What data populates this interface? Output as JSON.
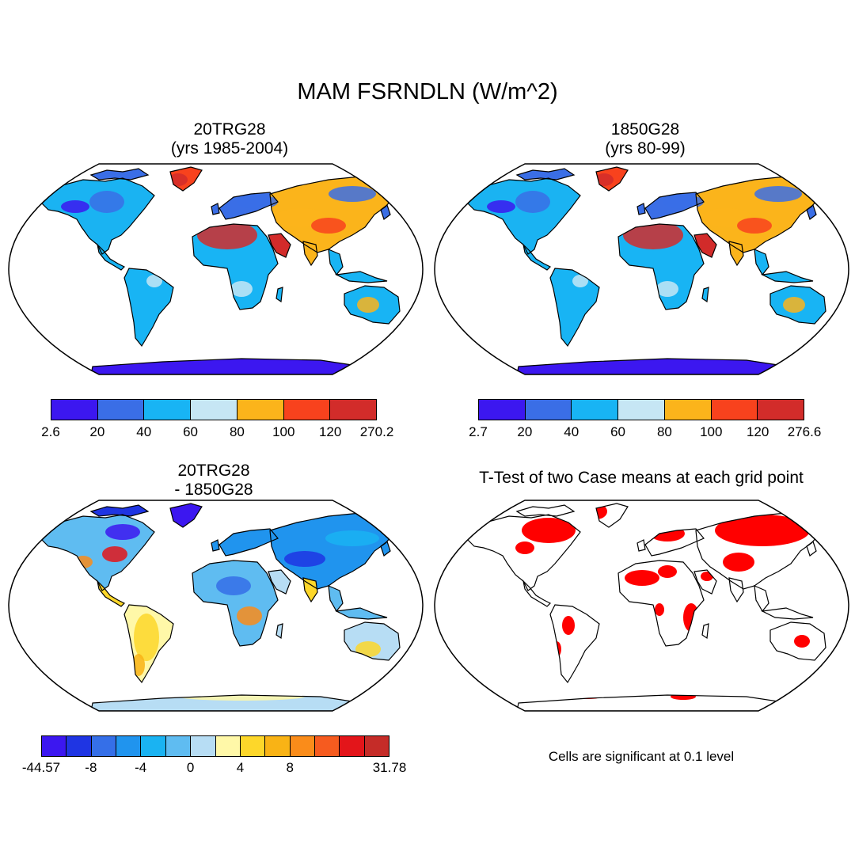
{
  "title": "MAM FSRNDLN (W/m^2)",
  "panels": [
    {
      "id": "p1",
      "title_line1": "20TRG28",
      "title_line2": "(yrs 1985-2004)",
      "colorbar": {
        "colors": [
          "#3c17f0",
          "#3a6ee6",
          "#18b4f4",
          "#c6e6f4",
          "#fbb41b",
          "#f8421d",
          "#d22c2a"
        ],
        "labels": [
          "2.6",
          "20",
          "40",
          "60",
          "80",
          "100",
          "120",
          "270.2"
        ]
      }
    },
    {
      "id": "p2",
      "title_line1": "1850G28",
      "title_line2": "(yrs 80-99)",
      "colorbar": {
        "colors": [
          "#3c17f0",
          "#3a6ee6",
          "#18b4f4",
          "#c6e6f4",
          "#fbb41b",
          "#f8421d",
          "#d22c2a"
        ],
        "labels": [
          "2.7",
          "20",
          "40",
          "60",
          "80",
          "100",
          "120",
          "276.6"
        ]
      }
    },
    {
      "id": "p3",
      "title_line1": "20TRG28",
      "title_line2": "- 1850G28",
      "colorbar": {
        "colors": [
          "#3c17f0",
          "#1f35e3",
          "#356fe8",
          "#2094ee",
          "#1ab3f2",
          "#5fbcf1",
          "#b7ddf4",
          "#fff8a8",
          "#fdd72a",
          "#f9b315",
          "#fa8c1a",
          "#f65b1f",
          "#e3151a",
          "#c52c28"
        ],
        "labels": [
          "-44.57",
          "-8",
          "-4",
          "0",
          "4",
          "8",
          "31.78"
        ]
      }
    },
    {
      "id": "p4",
      "title_line1": "T-Test of two Case means at each grid point",
      "note": "Cells are significant at 0.1 level",
      "significance_color": "#ff0000"
    }
  ]
}
